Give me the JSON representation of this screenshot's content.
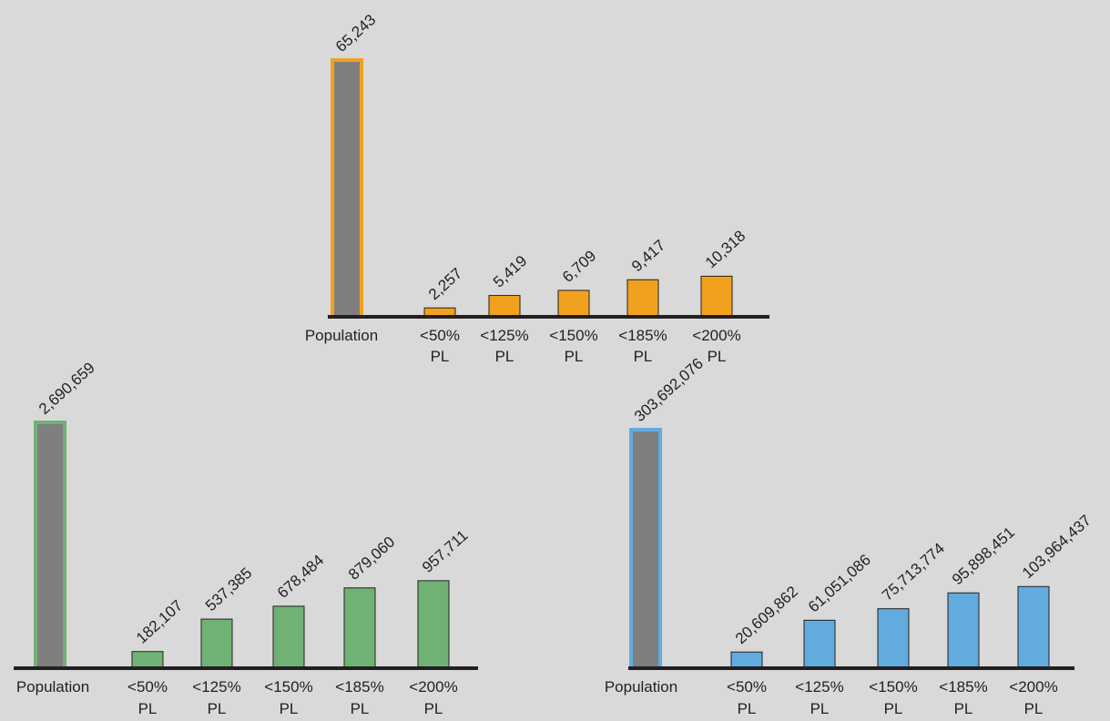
{
  "chart_data": [
    {
      "type": "bar",
      "accent": "#f0a21f",
      "pop_fill": "#7f7f7f",
      "categories": [
        {
          "label": "Population",
          "sublabel": ""
        },
        {
          "label": "<50%",
          "sublabel": "PL"
        },
        {
          "label": "<125%",
          "sublabel": "PL"
        },
        {
          "label": "<150%",
          "sublabel": "PL"
        },
        {
          "label": "<185%",
          "sublabel": "PL"
        },
        {
          "label": "<200%",
          "sublabel": "PL"
        }
      ],
      "values": [
        65243,
        2257,
        5419,
        6709,
        9417,
        10318
      ],
      "data_labels": [
        "65,243",
        "2,257",
        "5,419",
        "6,709",
        "9,417",
        "10,318"
      ]
    },
    {
      "type": "bar",
      "accent": "#70b274",
      "pop_fill": "#7f7f7f",
      "categories": [
        {
          "label": "Population",
          "sublabel": ""
        },
        {
          "label": "<50%",
          "sublabel": "PL"
        },
        {
          "label": "<125%",
          "sublabel": "PL"
        },
        {
          "label": "<150%",
          "sublabel": "PL"
        },
        {
          "label": "<185%",
          "sublabel": "PL"
        },
        {
          "label": "<200%",
          "sublabel": "PL"
        }
      ],
      "values": [
        2690659,
        182107,
        537385,
        678484,
        879060,
        957711
      ],
      "data_labels": [
        "2,690,659",
        "182,107",
        "537,385",
        "678,484",
        "879,060",
        "957,711"
      ]
    },
    {
      "type": "bar",
      "accent": "#62abde",
      "pop_fill": "#7f7f7f",
      "categories": [
        {
          "label": "Population",
          "sublabel": ""
        },
        {
          "label": "<50%",
          "sublabel": "PL"
        },
        {
          "label": "<125%",
          "sublabel": "PL"
        },
        {
          "label": "<150%",
          "sublabel": "PL"
        },
        {
          "label": "<185%",
          "sublabel": "PL"
        },
        {
          "label": "<200%",
          "sublabel": "PL"
        }
      ],
      "values": [
        303692076,
        20609862,
        61051086,
        75713774,
        95898451,
        103964437
      ],
      "data_labels": [
        "303,692,076",
        "20,609,862",
        "61,051,086",
        "75,713,774",
        "95,898,451",
        "103,964,437"
      ]
    }
  ]
}
